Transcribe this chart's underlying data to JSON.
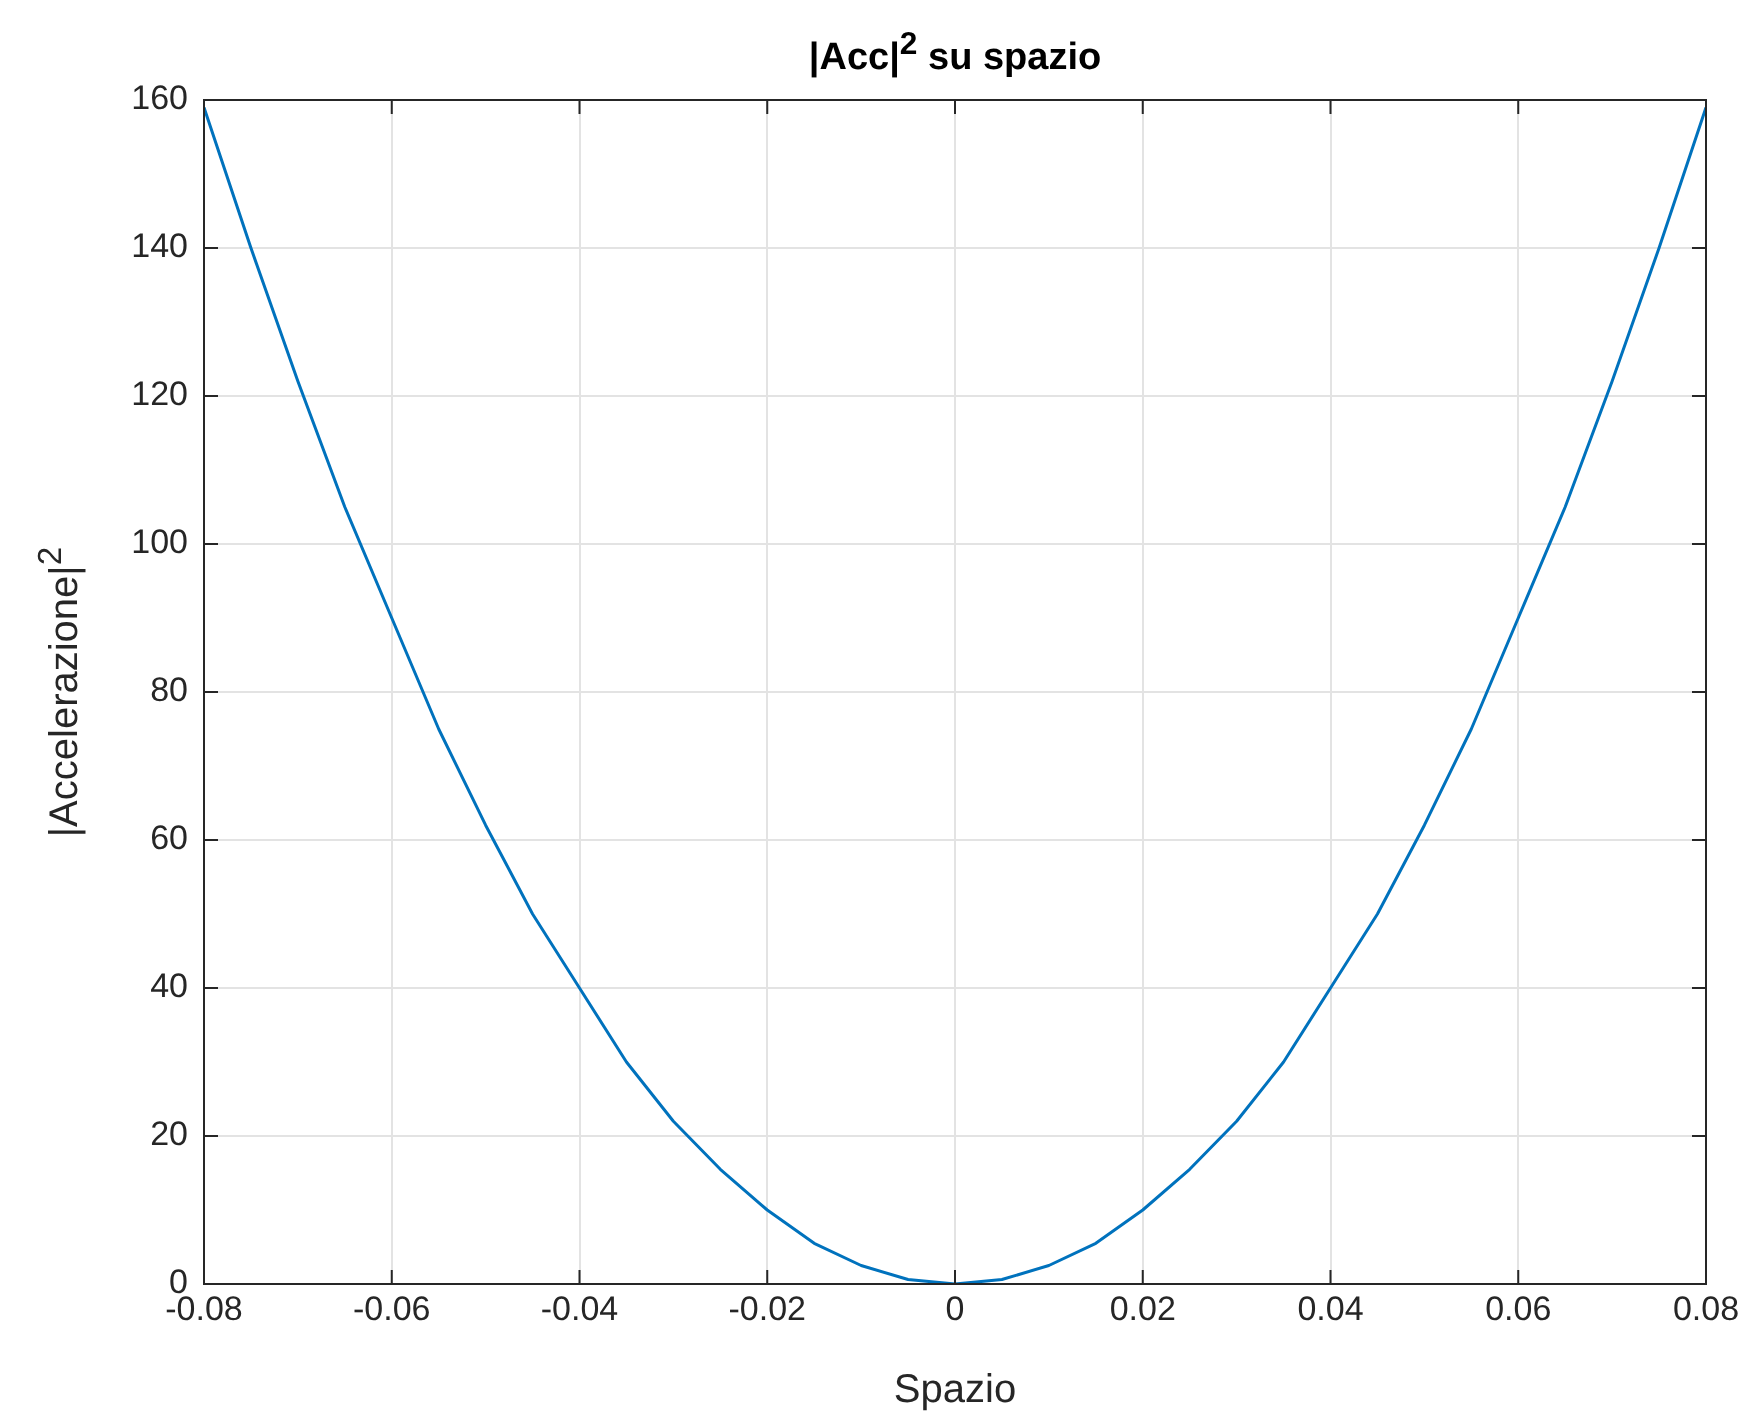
{
  "chart_data": {
    "type": "line",
    "title": "|Acc|$^{2}$ su spazio",
    "xlabel": "Spazio",
    "ylabel": "|Accelerazione|$^{2}$",
    "x": [
      -0.08,
      -0.075,
      -0.07,
      -0.065,
      -0.06,
      -0.055,
      -0.05,
      -0.045,
      -0.04,
      -0.035,
      -0.03,
      -0.025,
      -0.02,
      -0.015,
      -0.01,
      -0.005,
      0,
      0.005,
      0.01,
      0.015,
      0.02,
      0.025,
      0.03,
      0.035,
      0.04,
      0.045,
      0.05,
      0.055,
      0.06,
      0.065,
      0.07,
      0.075,
      0.08
    ],
    "series": [
      {
        "color": "#0072bd",
        "values": [
          159,
          140,
          122,
          105,
          90,
          75,
          62,
          50,
          40,
          30,
          22,
          15.5,
          10,
          5.5,
          2.5,
          0.6,
          0,
          0.6,
          2.5,
          5.5,
          10,
          15.5,
          22,
          30,
          40,
          50,
          62,
          75,
          90,
          105,
          122,
          140,
          159
        ]
      }
    ],
    "xlim": [
      -0.08,
      0.08
    ],
    "xticks": [
      -0.08,
      -0.06,
      -0.04,
      -0.02,
      0,
      0.02,
      0.04,
      0.06,
      0.08
    ],
    "ylim": [
      0,
      160
    ],
    "yticks": [
      0,
      20,
      40,
      60,
      80,
      100,
      120,
      140,
      160
    ],
    "grid": true
  }
}
